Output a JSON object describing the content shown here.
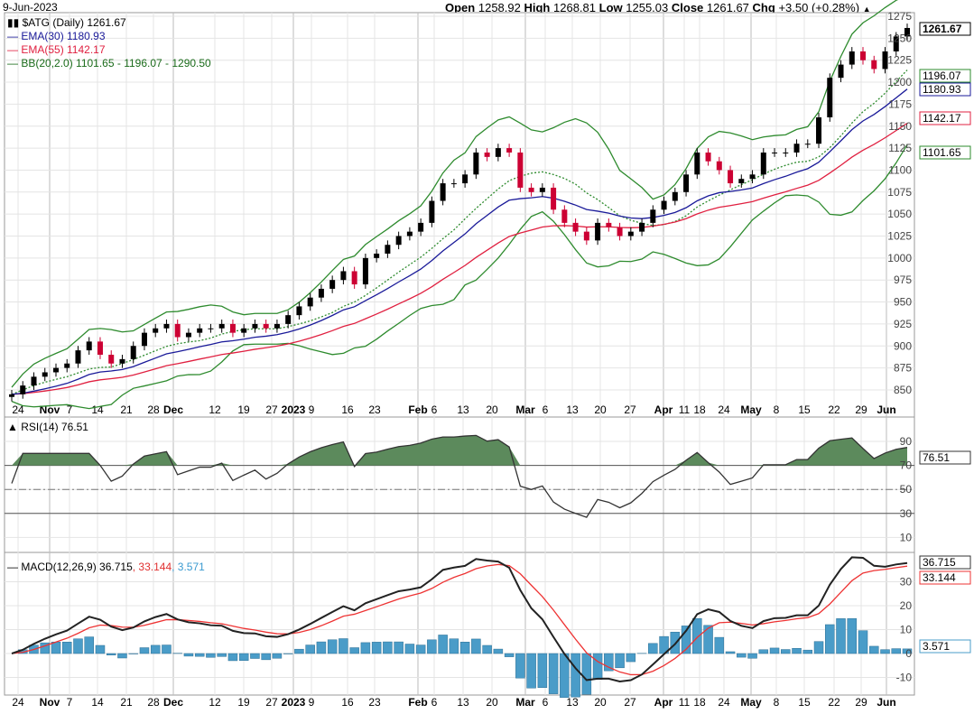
{
  "header": {
    "date": "9-Jun-2023",
    "open_label": "Open",
    "open": "1258.92",
    "high_label": "High",
    "high": "1268.81",
    "low_label": "Low",
    "low": "1255.03",
    "close_label": "Close",
    "close": "1261.67",
    "chg_label": "Chg",
    "chg": "+3.50 (+0.28%)",
    "chg_arrow": "▲"
  },
  "legend": {
    "symbol": "$ATG (Daily) 1261.67",
    "ema30": "EMA(30) 1180.93",
    "ema55": "EMA(55) 1142.17",
    "bb": "BB(20,2.0) 1101.65 - 1196.07 - 1290.50",
    "rsi": "RSI(14) 76.51",
    "macd": "MACD(12,26,9) 36.715",
    "macd_signal": ", 33.144",
    "macd_hist": ", 3.571"
  },
  "colors": {
    "up": "#000000",
    "down": "#cc0033",
    "ema30": "#1a1a99",
    "ema55": "#e02040",
    "bb": "#2e8b2e",
    "rsi_fill": "#5c8a5c",
    "macd": "#222222",
    "signal": "#ee3333",
    "hist": "#4a9cc8"
  },
  "chart_data": [
    {
      "type": "candlestick",
      "title": "$ATG (Daily)",
      "ylim": [
        835,
        1280
      ],
      "yticks": [
        1275,
        1250,
        1225,
        1200,
        1175,
        1150,
        1125,
        1100,
        1075,
        1050,
        1025,
        1000,
        975,
        950,
        925,
        900,
        875,
        850
      ],
      "xtick_labels": [
        "24",
        "Nov",
        "7",
        "14",
        "21",
        "28",
        "Dec",
        "12",
        "19",
        "27",
        "2023",
        "9",
        "16",
        "23",
        "Feb",
        "6",
        "13",
        "20",
        "Mar",
        "6",
        "13",
        "20",
        "27",
        "Apr",
        "11",
        "18",
        "24",
        "May",
        "8",
        "15",
        "22",
        "29",
        "Jun"
      ],
      "closes": [
        845,
        855,
        865,
        870,
        875,
        880,
        895,
        905,
        890,
        880,
        885,
        900,
        915,
        920,
        925,
        910,
        915,
        920,
        920,
        925,
        915,
        920,
        925,
        920,
        925,
        935,
        945,
        955,
        965,
        975,
        985,
        970,
        1000,
        1005,
        1015,
        1025,
        1030,
        1040,
        1065,
        1085,
        1085,
        1095,
        1120,
        1115,
        1125,
        1120,
        1080,
        1075,
        1080,
        1055,
        1040,
        1030,
        1020,
        1040,
        1035,
        1025,
        1030,
        1040,
        1055,
        1065,
        1075,
        1095,
        1120,
        1110,
        1100,
        1085,
        1090,
        1095,
        1120,
        1120,
        1120,
        1130,
        1130,
        1160,
        1205,
        1220,
        1235,
        1225,
        1215,
        1235,
        1252,
        1261.67
      ],
      "last_values": {
        "close": "1261.67",
        "bb_mid": "1196.07",
        "ema30": "1180.93",
        "ema55": "1142.17",
        "bb_low": "1101.65"
      }
    },
    {
      "type": "line",
      "title": "RSI(14)",
      "ylim": [
        0,
        100
      ],
      "yticks": [
        90,
        70,
        50,
        30,
        10
      ],
      "last_value": "76.51"
    },
    {
      "type": "bar+line",
      "title": "MACD(12,26,9)",
      "ylim": [
        -15,
        38
      ],
      "yticks": [
        30,
        20,
        10,
        0,
        -10
      ],
      "last_values": {
        "macd": "36.715",
        "signal": "33.144",
        "hist": "3.571"
      }
    }
  ]
}
